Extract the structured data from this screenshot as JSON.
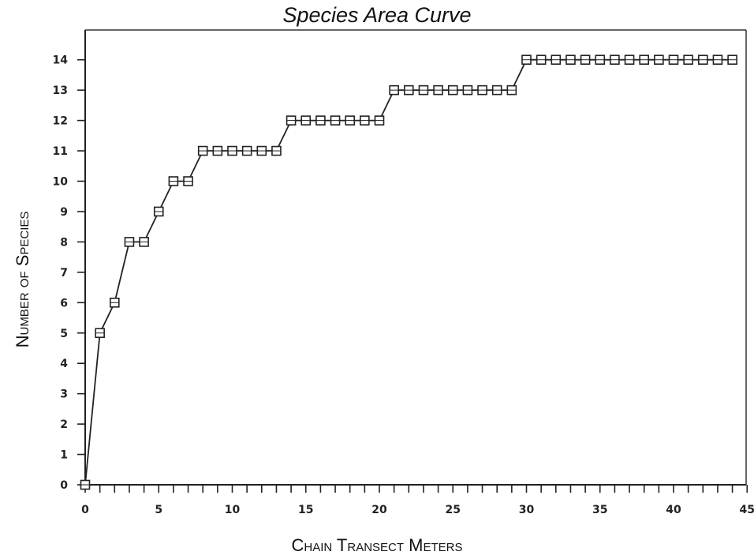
{
  "chart_data": {
    "type": "line",
    "title": "Species Area Curve",
    "xlabel": "Chain Transect Meters",
    "ylabel": "Number of Species",
    "xlim": [
      0,
      45
    ],
    "ylim": [
      0,
      15
    ],
    "x_ticks": [
      "0",
      "5",
      "10",
      "15",
      "20",
      "25",
      "30",
      "35",
      "40",
      "45"
    ],
    "y_ticks": [
      "0",
      "1",
      "2",
      "3",
      "4",
      "5",
      "6",
      "7",
      "8",
      "9",
      "10",
      "11",
      "12",
      "13",
      "14"
    ],
    "grid": false,
    "marker": "square",
    "series": [
      {
        "x": [
          0,
          1,
          2,
          3,
          4,
          5,
          6,
          7,
          8,
          9,
          10,
          11,
          12,
          13,
          14,
          15,
          16,
          17,
          18,
          19,
          20,
          21,
          22,
          23,
          24,
          25,
          26,
          27,
          28,
          29,
          30,
          31,
          32,
          33,
          34,
          35,
          36,
          37,
          38,
          39,
          40,
          41,
          42,
          43,
          44
        ],
        "y": [
          0,
          5,
          6,
          8,
          8,
          9,
          10,
          10,
          11,
          11,
          11,
          11,
          11,
          11,
          12,
          12,
          12,
          12,
          12,
          12,
          12,
          13,
          13,
          13,
          13,
          13,
          13,
          13,
          13,
          13,
          14,
          14,
          14,
          14,
          14,
          14,
          14,
          14,
          14,
          14,
          14,
          14,
          14,
          14,
          14
        ]
      }
    ]
  }
}
